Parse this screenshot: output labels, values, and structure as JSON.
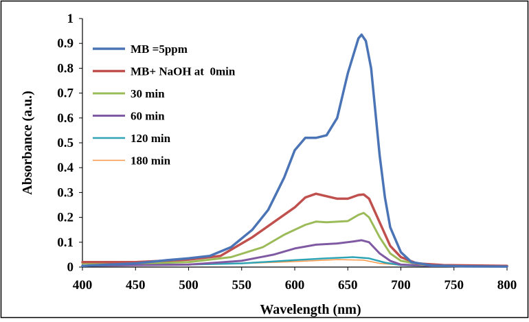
{
  "chart_data": {
    "type": "line",
    "xlabel": "Wavelength (nm)",
    "ylabel": "Absorbance (a.u.)",
    "xlim": [
      400,
      800
    ],
    "ylim": [
      0,
      1
    ],
    "x_ticks": [
      "400",
      "450",
      "500",
      "550",
      "600",
      "650",
      "700",
      "750",
      "800"
    ],
    "y_ticks": [
      "0",
      "0.1",
      "0.2",
      "0.3",
      "0.4",
      "0.5",
      "0.6",
      "0.7",
      "0.8",
      "0.9",
      "1"
    ],
    "grid": false,
    "legend_position": "top-left",
    "series": [
      {
        "name": "MB =5ppm",
        "color": "#4a74b5",
        "points": [
          [
            400,
            0.005
          ],
          [
            450,
            0.015
          ],
          [
            480,
            0.028
          ],
          [
            500,
            0.035
          ],
          [
            520,
            0.045
          ],
          [
            540,
            0.08
          ],
          [
            560,
            0.15
          ],
          [
            575,
            0.23
          ],
          [
            590,
            0.36
          ],
          [
            600,
            0.47
          ],
          [
            610,
            0.52
          ],
          [
            620,
            0.52
          ],
          [
            630,
            0.53
          ],
          [
            640,
            0.6
          ],
          [
            650,
            0.78
          ],
          [
            655,
            0.85
          ],
          [
            660,
            0.92
          ],
          [
            663,
            0.935
          ],
          [
            667,
            0.91
          ],
          [
            672,
            0.8
          ],
          [
            680,
            0.45
          ],
          [
            685,
            0.28
          ],
          [
            690,
            0.16
          ],
          [
            700,
            0.06
          ],
          [
            710,
            0.02
          ],
          [
            730,
            0.006
          ],
          [
            760,
            0.003
          ],
          [
            800,
            0.002
          ]
        ]
      },
      {
        "name": "MB+ NaOH at  0min",
        "color": "#c0504d",
        "points": [
          [
            400,
            0.02
          ],
          [
            450,
            0.02
          ],
          [
            500,
            0.03
          ],
          [
            530,
            0.045
          ],
          [
            560,
            0.12
          ],
          [
            580,
            0.18
          ],
          [
            600,
            0.24
          ],
          [
            610,
            0.28
          ],
          [
            620,
            0.295
          ],
          [
            630,
            0.285
          ],
          [
            640,
            0.275
          ],
          [
            650,
            0.275
          ],
          [
            660,
            0.29
          ],
          [
            665,
            0.292
          ],
          [
            670,
            0.275
          ],
          [
            680,
            0.18
          ],
          [
            690,
            0.085
          ],
          [
            700,
            0.04
          ],
          [
            715,
            0.015
          ],
          [
            740,
            0.008
          ],
          [
            800,
            0.005
          ]
        ]
      },
      {
        "name": "30 min",
        "color": "#9bbb59",
        "points": [
          [
            400,
            0.015
          ],
          [
            450,
            0.015
          ],
          [
            500,
            0.02
          ],
          [
            540,
            0.04
          ],
          [
            570,
            0.08
          ],
          [
            590,
            0.13
          ],
          [
            610,
            0.17
          ],
          [
            620,
            0.183
          ],
          [
            630,
            0.18
          ],
          [
            650,
            0.185
          ],
          [
            660,
            0.21
          ],
          [
            665,
            0.218
          ],
          [
            670,
            0.2
          ],
          [
            680,
            0.12
          ],
          [
            690,
            0.055
          ],
          [
            700,
            0.025
          ],
          [
            720,
            0.01
          ],
          [
            760,
            0.006
          ],
          [
            800,
            0.005
          ]
        ]
      },
      {
        "name": "60 min",
        "color": "#7f5aa3",
        "points": [
          [
            400,
            0.005
          ],
          [
            450,
            0.008
          ],
          [
            500,
            0.01
          ],
          [
            550,
            0.025
          ],
          [
            580,
            0.05
          ],
          [
            600,
            0.075
          ],
          [
            620,
            0.09
          ],
          [
            640,
            0.095
          ],
          [
            655,
            0.103
          ],
          [
            663,
            0.108
          ],
          [
            670,
            0.1
          ],
          [
            680,
            0.055
          ],
          [
            690,
            0.025
          ],
          [
            700,
            0.01
          ],
          [
            730,
            0.005
          ],
          [
            800,
            0.004
          ]
        ]
      },
      {
        "name": "120 min",
        "color": "#2fa4b5",
        "points": [
          [
            400,
            0.02
          ],
          [
            420,
            0.015
          ],
          [
            450,
            0.01
          ],
          [
            500,
            0.01
          ],
          [
            550,
            0.015
          ],
          [
            600,
            0.028
          ],
          [
            630,
            0.035
          ],
          [
            655,
            0.04
          ],
          [
            670,
            0.035
          ],
          [
            685,
            0.018
          ],
          [
            700,
            0.008
          ],
          [
            730,
            0.004
          ],
          [
            800,
            0.003
          ]
        ]
      },
      {
        "name": "180 min",
        "color": "#f79646",
        "points": [
          [
            400,
            0.02
          ],
          [
            430,
            0.015
          ],
          [
            450,
            0.012
          ],
          [
            500,
            0.012
          ],
          [
            550,
            0.014
          ],
          [
            600,
            0.022
          ],
          [
            640,
            0.03
          ],
          [
            665,
            0.028
          ],
          [
            680,
            0.015
          ],
          [
            700,
            0.008
          ],
          [
            730,
            0.004
          ],
          [
            800,
            0.003
          ]
        ]
      }
    ]
  }
}
